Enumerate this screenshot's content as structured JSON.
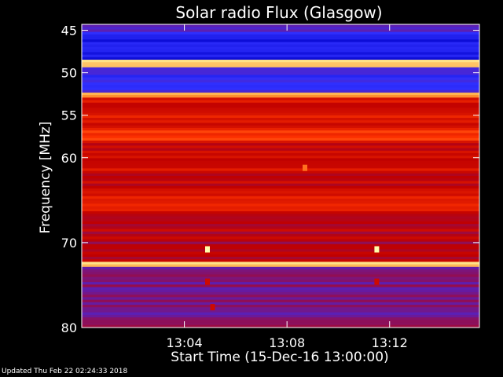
{
  "chart_data": {
    "type": "heatmap",
    "title": "Solar radio Flux (Glasgow)",
    "xlabel": "Start Time (15-Dec-16 13:00:00)",
    "ylabel": "Frequency [MHz]",
    "x_unit": "minutes after 13:00:00",
    "xlim": [
      0,
      15.5
    ],
    "ylim": [
      80,
      44.3
    ],
    "x_ticks": [
      {
        "value": 4,
        "label": "13:04"
      },
      {
        "value": 8,
        "label": "13:08"
      },
      {
        "value": 12,
        "label": "13:12"
      }
    ],
    "y_ticks": [
      {
        "value": 45,
        "label": "45"
      },
      {
        "value": 50,
        "label": "50"
      },
      {
        "value": 55,
        "label": "55"
      },
      {
        "value": 60,
        "label": "60"
      },
      {
        "value": 70,
        "label": "70"
      },
      {
        "value": 80,
        "label": "80"
      }
    ],
    "colormap": [
      "#000000",
      "#0000c8",
      "#3030ff",
      "#6a1a9a",
      "#c00000",
      "#ff3300",
      "#ff9933",
      "#ffffaa"
    ],
    "frequency_bands": [
      {
        "freq_from": 44.3,
        "freq_to": 45.2,
        "level": 0.38
      },
      {
        "freq_from": 45.2,
        "freq_to": 48.5,
        "level": 0.22
      },
      {
        "freq_from": 48.5,
        "freq_to": 49.4,
        "level": 0.95
      },
      {
        "freq_from": 49.4,
        "freq_to": 52.2,
        "level": 0.3
      },
      {
        "freq_from": 52.2,
        "freq_to": 53.0,
        "level": 0.85
      },
      {
        "freq_from": 53.0,
        "freq_to": 56.8,
        "level": 0.62
      },
      {
        "freq_from": 56.8,
        "freq_to": 58.0,
        "level": 0.7
      },
      {
        "freq_from": 58.0,
        "freq_to": 63.5,
        "level": 0.6
      },
      {
        "freq_from": 63.5,
        "freq_to": 66.5,
        "level": 0.64
      },
      {
        "freq_from": 66.5,
        "freq_to": 72.2,
        "level": 0.55
      },
      {
        "freq_from": 72.2,
        "freq_to": 72.8,
        "level": 0.9
      },
      {
        "freq_from": 72.8,
        "freq_to": 80.0,
        "level": 0.45
      }
    ],
    "bursts": [
      {
        "time": 4.9,
        "freq": 70.8,
        "level": 1.0
      },
      {
        "time": 11.5,
        "freq": 70.8,
        "level": 1.0
      },
      {
        "time": 8.7,
        "freq": 61.2,
        "level": 0.8
      },
      {
        "time": 4.9,
        "freq": 74.6,
        "level": 0.6
      },
      {
        "time": 11.5,
        "freq": 74.6,
        "level": 0.6
      },
      {
        "time": 5.1,
        "freq": 77.6,
        "level": 0.6
      }
    ]
  },
  "footer": {
    "updated": "Updated Thu Feb 22 02:24:33 2018"
  }
}
